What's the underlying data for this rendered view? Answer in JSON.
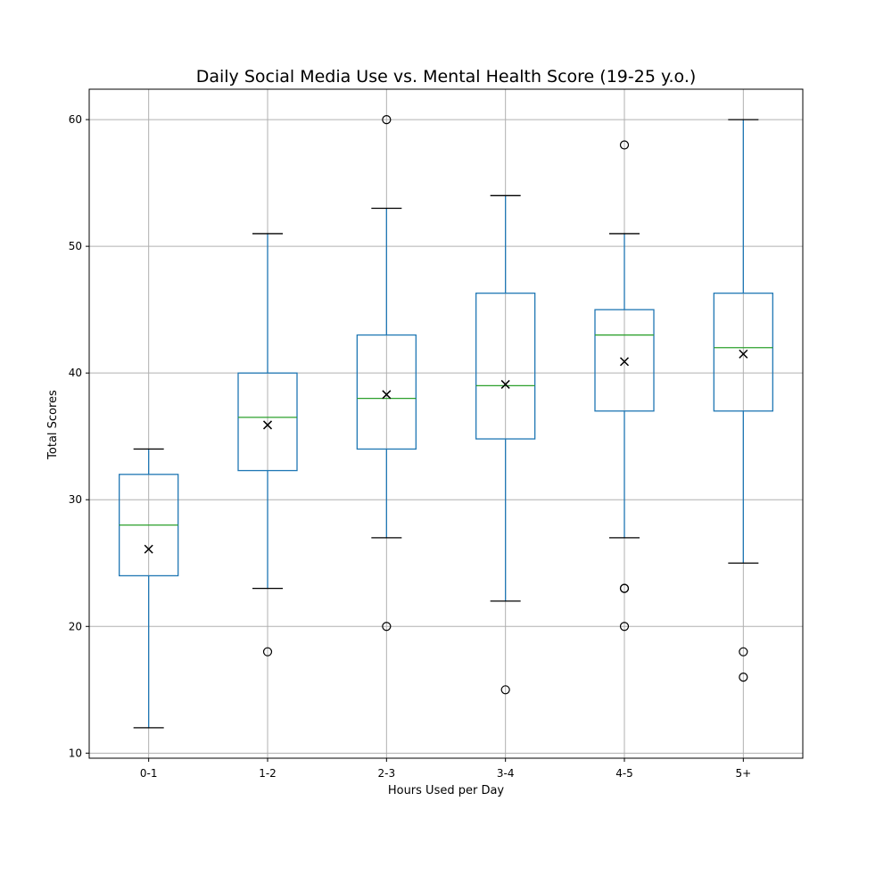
{
  "chart_data": {
    "type": "box",
    "title": "Daily Social Media Use vs. Mental Health Score (19-25 y.o.)",
    "xlabel": "Hours Used per Day",
    "ylabel": "Total Scores",
    "ylim": [
      9.6,
      62.4
    ],
    "yticks": [
      10,
      20,
      30,
      40,
      50,
      60
    ],
    "grid": true,
    "categories": [
      "0-1",
      "1-2",
      "2-3",
      "3-4",
      "4-5",
      "5+"
    ],
    "boxes": [
      {
        "category": "0-1",
        "whisker_low": 12,
        "q1": 24,
        "median": 28,
        "q3": 32,
        "whisker_high": 34,
        "mean": 26.1,
        "outliers": []
      },
      {
        "category": "1-2",
        "whisker_low": 23,
        "q1": 32.3,
        "median": 36.5,
        "q3": 40,
        "whisker_high": 51,
        "mean": 35.9,
        "outliers": [
          18
        ]
      },
      {
        "category": "2-3",
        "whisker_low": 27,
        "q1": 34,
        "median": 38,
        "q3": 43,
        "whisker_high": 53,
        "mean": 38.3,
        "outliers": [
          60,
          20
        ]
      },
      {
        "category": "3-4",
        "whisker_low": 22,
        "q1": 34.8,
        "median": 39,
        "q3": 46.3,
        "whisker_high": 54,
        "mean": 39.1,
        "outliers": [
          15
        ]
      },
      {
        "category": "4-5",
        "whisker_low": 27,
        "q1": 37,
        "median": 43,
        "q3": 45,
        "whisker_high": 51,
        "mean": 40.9,
        "outliers": [
          58,
          23,
          23,
          20
        ]
      },
      {
        "category": "5+",
        "whisker_low": 25,
        "q1": 37,
        "median": 42,
        "q3": 46.3,
        "whisker_high": 60,
        "mean": 41.5,
        "outliers": [
          18,
          16
        ]
      }
    ],
    "colors": {
      "box": "#1f77b4",
      "median": "#2ca02c",
      "whisker_cap": "#000000",
      "mean_marker": "#000000",
      "outlier": "#000000",
      "grid": "#b0b0b0"
    }
  }
}
